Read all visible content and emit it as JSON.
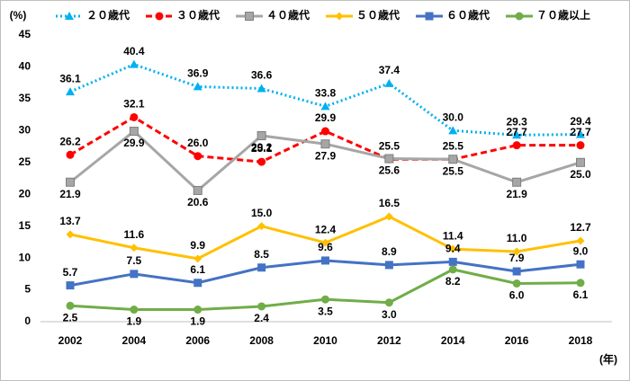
{
  "chart_data": {
    "type": "line",
    "y_unit": "(%)",
    "x_unit": "(年)",
    "categories": [
      "2002",
      "2004",
      "2006",
      "2008",
      "2010",
      "2012",
      "2014",
      "2016",
      "2018"
    ],
    "ylim": [
      0,
      45
    ],
    "yticks": [
      0,
      5,
      10,
      15,
      20,
      25,
      30,
      35,
      40,
      45
    ],
    "series": [
      {
        "name": "２０歳代",
        "color": "#00b0f0",
        "dash": "dotted",
        "marker": "triangle",
        "values": [
          36.1,
          40.4,
          36.9,
          36.6,
          33.8,
          37.4,
          30.0,
          29.3,
          29.4
        ],
        "value_labels": [
          "36.1",
          "40.4",
          "36.9",
          "36.6",
          "33.8",
          "37.4",
          "30.0",
          "29.3",
          "29.4"
        ]
      },
      {
        "name": "３０歳代",
        "color": "#ff0000",
        "dash": "dashed",
        "marker": "circle",
        "values": [
          26.2,
          32.1,
          26.0,
          25.1,
          29.9,
          25.5,
          25.5,
          27.7,
          27.7
        ],
        "value_labels": [
          "26.2",
          "32.1",
          "26.0",
          "25.1",
          "29.9",
          "25.5",
          "25.5",
          "27.7",
          "27.7"
        ]
      },
      {
        "name": "４０歳代",
        "color": "#a6a6a6",
        "dash": "solid",
        "marker": "square",
        "values": [
          21.9,
          29.9,
          20.6,
          29.2,
          27.9,
          25.6,
          25.5,
          21.9,
          25.0
        ],
        "value_labels": [
          "21.9",
          "29.9",
          "20.6",
          "29.2",
          "27.9",
          "25.6",
          "25.5",
          "21.9",
          "25.0"
        ]
      },
      {
        "name": "５０歳代",
        "color": "#ffc000",
        "dash": "solid",
        "marker": "diamond",
        "values": [
          13.7,
          11.6,
          9.9,
          15.0,
          12.4,
          16.5,
          11.4,
          11.0,
          12.7
        ],
        "value_labels": [
          "13.7",
          "11.6",
          "9.9",
          "15.0",
          "12.4",
          "16.5",
          "11.4",
          "11.0",
          "12.7"
        ]
      },
      {
        "name": "６０歳代",
        "color": "#4472c4",
        "dash": "solid",
        "marker": "square",
        "values": [
          5.7,
          7.5,
          6.1,
          8.5,
          9.6,
          8.9,
          9.4,
          7.9,
          9.0
        ],
        "value_labels": [
          "5.7",
          "7.5",
          "6.1",
          "8.5",
          "9.6",
          "8.9",
          "9.4",
          "7.9",
          "9.0"
        ]
      },
      {
        "name": "７０歳以上",
        "color": "#70ad47",
        "dash": "solid",
        "marker": "circle",
        "values": [
          2.5,
          1.9,
          1.9,
          2.4,
          3.5,
          3.0,
          8.2,
          6.0,
          6.1
        ],
        "value_labels": [
          "2.5",
          "1.9",
          "1.9",
          "2.4",
          "3.5",
          "3.0",
          "8.2",
          "6.0",
          "6.1"
        ]
      }
    ]
  }
}
